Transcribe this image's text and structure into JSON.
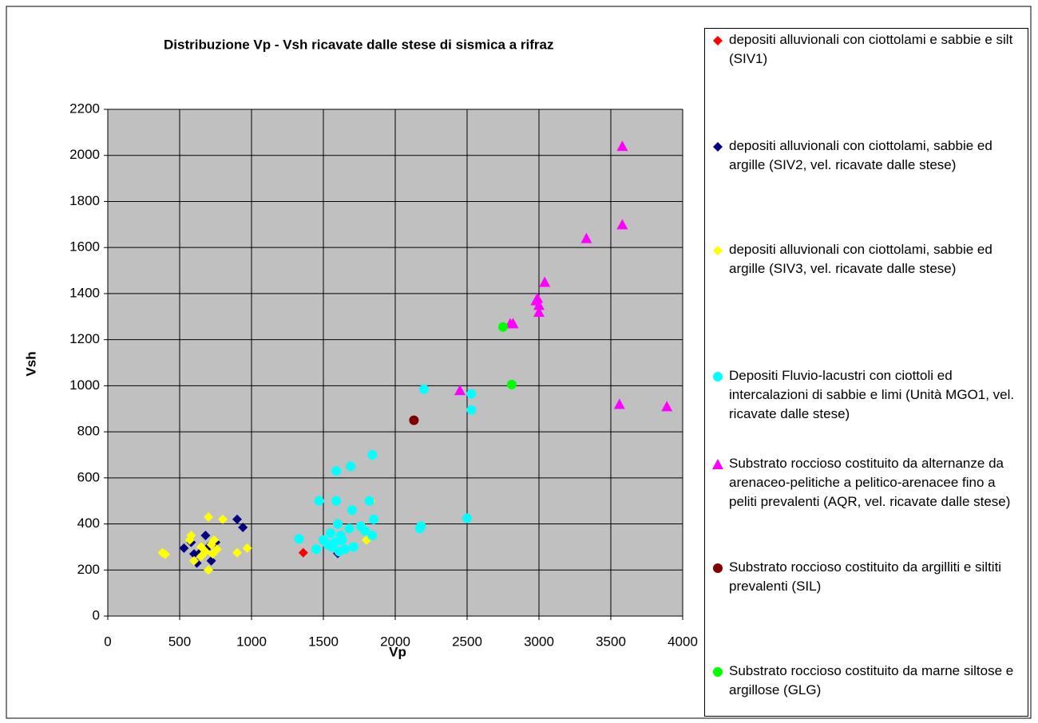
{
  "chart_data": {
    "type": "scatter",
    "title": "Distribuzione Vp - Vsh ricavate dalle stese di sismica a  rifraz",
    "x_label": "Vp",
    "y_label": "Vsh",
    "xlim": [
      0,
      4000
    ],
    "ylim": [
      0,
      2200
    ],
    "xticks": [
      0,
      500,
      1000,
      1500,
      2000,
      2500,
      3000,
      3500,
      4000
    ],
    "yticks": [
      0,
      200,
      400,
      600,
      800,
      1000,
      1200,
      1400,
      1600,
      1800,
      2000,
      2200
    ],
    "grid": true,
    "legend": "right",
    "series": [
      {
        "name": "depositi alluvionali con ciottolami e sabbie e silt (SIV1)",
        "color": "#ff0000",
        "marker": "diamond",
        "x": [
          1360
        ],
        "values": [
          275
        ]
      },
      {
        "name": "depositi alluvionali con ciottolami, sabbie ed argille (SIV2, vel. ricavate dalle stese)",
        "color": "#000080",
        "marker": "diamond",
        "x": [
          530,
          580,
          600,
          620,
          650,
          680,
          700,
          720,
          750,
          900,
          940,
          1600
        ],
        "values": [
          295,
          320,
          270,
          230,
          280,
          350,
          300,
          240,
          320,
          420,
          385,
          272
        ]
      },
      {
        "name": "depositi alluvionali con ciottolami, sabbie ed argille (SIV3, vel. ricavate dalle stese)",
        "color": "#ffff00",
        "marker": "diamond",
        "x": [
          380,
          400,
          570,
          580,
          600,
          650,
          650,
          680,
          700,
          700,
          720,
          730,
          740,
          760,
          800,
          900,
          970,
          1800,
          1830
        ],
        "values": [
          275,
          268,
          330,
          350,
          240,
          300,
          260,
          280,
          200,
          430,
          310,
          270,
          330,
          290,
          420,
          275,
          295,
          330,
          500
        ]
      },
      {
        "name": "Depositi Fluvio-lacustri con ciottoli ed intercalazioni di sabbie e limi (Unità MGO1, vel. ricavate dalle stese)",
        "color": "#00ffff",
        "marker": "circle",
        "x": [
          1330,
          1450,
          1470,
          1500,
          1530,
          1550,
          1560,
          1580,
          1590,
          1590,
          1600,
          1610,
          1620,
          1630,
          1650,
          1680,
          1690,
          1700,
          1710,
          1760,
          1790,
          1820,
          1840,
          1840,
          1850,
          2170,
          2180,
          2200,
          2500,
          2530,
          2530
        ],
        "values": [
          335,
          290,
          500,
          330,
          310,
          360,
          300,
          320,
          630,
          500,
          400,
          280,
          350,
          330,
          290,
          380,
          650,
          460,
          300,
          390,
          370,
          500,
          700,
          350,
          420,
          380,
          390,
          985,
          425,
          965,
          895
        ]
      },
      {
        "name": "Substrato roccioso costituito da alternanze da arenaceo-pelitiche a pelitico-arenacee fino a peliti prevalenti (AQR, vel. ricavate dalle stese)",
        "color": "#ff00ff",
        "marker": "triangle",
        "x": [
          2450,
          2800,
          2820,
          2980,
          2990,
          3000,
          3000,
          3040,
          3330,
          3560,
          3580,
          3580,
          3890
        ],
        "values": [
          980,
          1270,
          1270,
          1370,
          1380,
          1350,
          1320,
          1450,
          1640,
          920,
          2040,
          1700,
          910
        ]
      },
      {
        "name": "Substrato roccioso costituito da argilliti e siltiti prevalenti (SIL)",
        "color": "#800000",
        "marker": "circle",
        "x": [
          2130
        ],
        "values": [
          850
        ]
      },
      {
        "name": "Substrato roccioso costituito da marne siltose e argillose (GLG)",
        "color": "#00ff00",
        "marker": "circle",
        "x": [
          2750,
          2810
        ],
        "values": [
          1255,
          1005
        ]
      }
    ]
  }
}
